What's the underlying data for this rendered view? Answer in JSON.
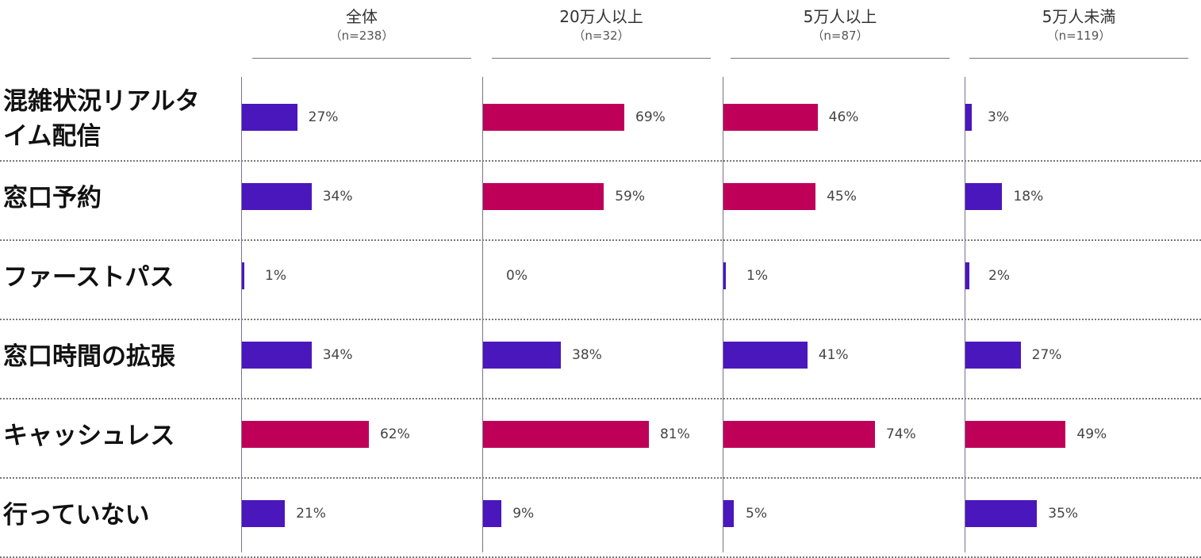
{
  "colors": {
    "low": "#4a17bd",
    "high": "#bf0059"
  },
  "chart_data": {
    "type": "bar",
    "orientation": "horizontal",
    "categories": [
      "混雑状況リアルタイム配信",
      "窓口予約",
      "ファーストパス",
      "窓口時間の拡張",
      "キャッシュレス",
      "行っていない"
    ],
    "category_lines": [
      [
        "混雑状況リアルタ",
        "イム配信"
      ],
      [
        "窓口予約"
      ],
      [
        "ファーストパス"
      ],
      [
        "窓口時間の拡張"
      ],
      [
        "キャッシュレス"
      ],
      [
        "行っていない"
      ]
    ],
    "value_format": "%",
    "xlim": [
      0,
      100
    ],
    "grid": false,
    "series": [
      {
        "name": "全体",
        "n_label": "（n=238）",
        "values": [
          27,
          34,
          1,
          34,
          62,
          21
        ],
        "colors": [
          "low",
          "low",
          "low",
          "low",
          "high",
          "low"
        ]
      },
      {
        "name": "20万人以上",
        "n_label": "（n=32）",
        "values": [
          69,
          59,
          0,
          38,
          81,
          9
        ],
        "colors": [
          "high",
          "high",
          "low",
          "low",
          "high",
          "low"
        ]
      },
      {
        "name": "5万人以上",
        "n_label": "（n=87）",
        "values": [
          46,
          45,
          1,
          41,
          74,
          5
        ],
        "colors": [
          "high",
          "high",
          "low",
          "low",
          "high",
          "low"
        ]
      },
      {
        "name": "5万人未満",
        "n_label": "（n=119）",
        "values": [
          3,
          18,
          2,
          27,
          49,
          35
        ],
        "colors": [
          "low",
          "low",
          "low",
          "low",
          "high",
          "low"
        ]
      }
    ]
  }
}
